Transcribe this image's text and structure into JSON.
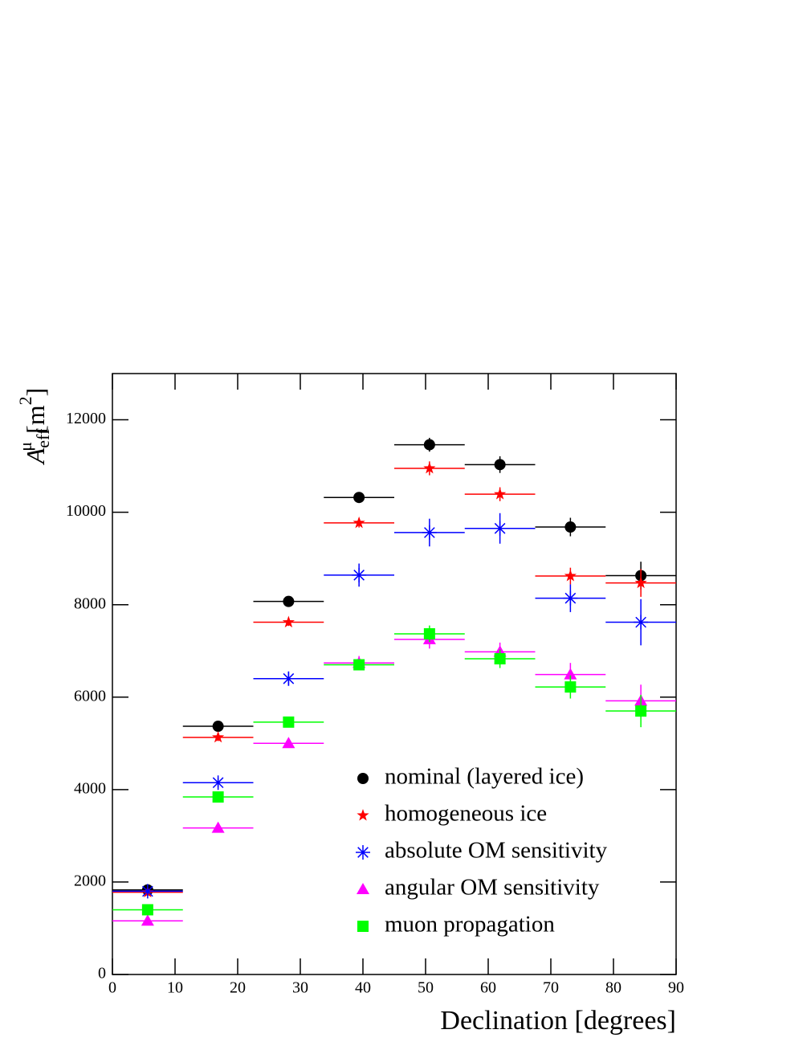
{
  "chart_data": {
    "type": "scatter",
    "xlabel": "Declination [degrees]",
    "ylabel": {
      "symbol": "A",
      "sub": "eff",
      "sup": "μ",
      "unit": "[m",
      "unit_sup": "2",
      "close": "]"
    },
    "bins": [
      0,
      11.25,
      22.5,
      33.75,
      45,
      56.25,
      67.5,
      78.75,
      90
    ],
    "xlim": [
      0,
      90
    ],
    "xticks": [
      0,
      10,
      20,
      30,
      40,
      50,
      60,
      70,
      80,
      90
    ],
    "ylim": [
      0,
      13000
    ],
    "yticks": [
      0,
      2000,
      4000,
      6000,
      8000,
      10000,
      12000
    ],
    "series": [
      {
        "name": "nominal (layered ice)",
        "color": "#000000",
        "marker": "circle",
        "values": [
          1830,
          5370,
          8070,
          10320,
          11460,
          11030,
          9680,
          8630
        ],
        "errors": [
          60,
          100,
          80,
          100,
          150,
          180,
          200,
          300
        ]
      },
      {
        "name": "homogeneous ice",
        "color": "#ff0000",
        "marker": "star",
        "values": [
          1780,
          5130,
          7620,
          9770,
          10950,
          10390,
          8620,
          8470
        ],
        "errors": [
          50,
          80,
          80,
          100,
          150,
          150,
          180,
          300
        ]
      },
      {
        "name": "absolute OM sensitivity",
        "color": "#0000ff",
        "marker": "asterisk",
        "values": [
          1800,
          4150,
          6400,
          8640,
          9560,
          9650,
          8140,
          7620
        ],
        "errors": [
          50,
          100,
          150,
          250,
          300,
          330,
          300,
          500
        ]
      },
      {
        "name": "angular OM sensitivity",
        "color": "#ff00ff",
        "marker": "triangle",
        "values": [
          1160,
          3170,
          5000,
          6740,
          7250,
          6980,
          6490,
          5920
        ],
        "errors": [
          50,
          80,
          80,
          150,
          200,
          200,
          250,
          350
        ]
      },
      {
        "name": "muon propagation",
        "color": "#00ff00",
        "marker": "square",
        "values": [
          1400,
          3840,
          5460,
          6700,
          7370,
          6830,
          6220,
          5700
        ],
        "errors": [
          50,
          80,
          80,
          120,
          180,
          200,
          250,
          350
        ]
      }
    ]
  }
}
